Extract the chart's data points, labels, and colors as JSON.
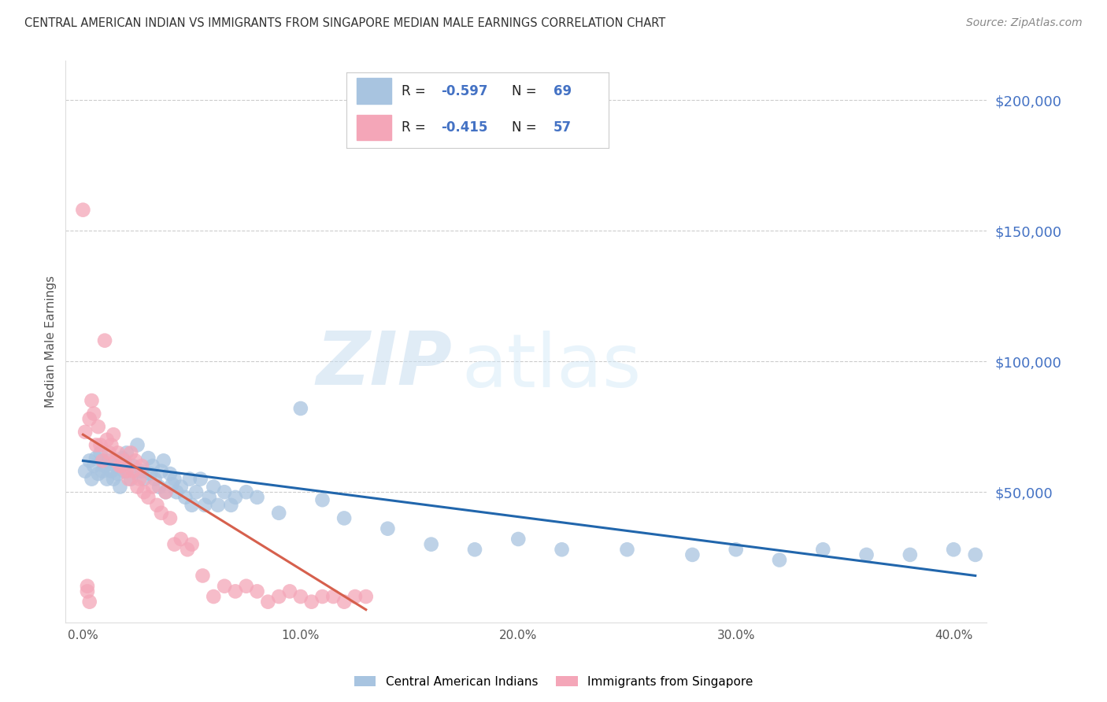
{
  "title": "CENTRAL AMERICAN INDIAN VS IMMIGRANTS FROM SINGAPORE MEDIAN MALE EARNINGS CORRELATION CHART",
  "source": "Source: ZipAtlas.com",
  "xlabel_ticks": [
    "0.0%",
    "10.0%",
    "20.0%",
    "30.0%",
    "40.0%"
  ],
  "xlabel_tick_vals": [
    0.0,
    0.1,
    0.2,
    0.3,
    0.4
  ],
  "ylabel": "Median Male Earnings",
  "ytick_labels": [
    "$200,000",
    "$150,000",
    "$100,000",
    "$50,000"
  ],
  "ytick_vals": [
    200000,
    150000,
    100000,
    50000
  ],
  "xlim": [
    -0.008,
    0.415
  ],
  "ylim": [
    0,
    215000
  ],
  "blue_color": "#a8c4e0",
  "blue_line_color": "#2166ac",
  "pink_color": "#f4a6b8",
  "pink_line_color": "#d6604d",
  "legend_label_blue": "Central American Indians",
  "legend_label_pink": "Immigrants from Singapore",
  "watermark_zip": "ZIP",
  "watermark_atlas": "atlas",
  "blue_scatter_x": [
    0.001,
    0.003,
    0.004,
    0.005,
    0.006,
    0.007,
    0.008,
    0.009,
    0.01,
    0.011,
    0.012,
    0.013,
    0.014,
    0.015,
    0.016,
    0.017,
    0.018,
    0.019,
    0.02,
    0.022,
    0.023,
    0.025,
    0.027,
    0.028,
    0.03,
    0.031,
    0.032,
    0.033,
    0.035,
    0.036,
    0.037,
    0.038,
    0.04,
    0.041,
    0.042,
    0.043,
    0.045,
    0.047,
    0.049,
    0.05,
    0.052,
    0.054,
    0.056,
    0.058,
    0.06,
    0.062,
    0.065,
    0.068,
    0.07,
    0.075,
    0.08,
    0.09,
    0.1,
    0.11,
    0.12,
    0.14,
    0.16,
    0.18,
    0.2,
    0.22,
    0.25,
    0.28,
    0.3,
    0.32,
    0.34,
    0.36,
    0.38,
    0.4,
    0.41
  ],
  "blue_scatter_y": [
    58000,
    62000,
    55000,
    60000,
    63000,
    57000,
    65000,
    58000,
    60000,
    55000,
    62000,
    58000,
    55000,
    60000,
    57000,
    52000,
    63000,
    58000,
    65000,
    55000,
    60000,
    68000,
    58000,
    55000,
    63000,
    57000,
    60000,
    55000,
    52000,
    58000,
    62000,
    50000,
    57000,
    53000,
    55000,
    50000,
    52000,
    48000,
    55000,
    45000,
    50000,
    55000,
    45000,
    48000,
    52000,
    45000,
    50000,
    45000,
    48000,
    50000,
    48000,
    42000,
    82000,
    47000,
    40000,
    36000,
    30000,
    28000,
    32000,
    28000,
    28000,
    26000,
    28000,
    24000,
    28000,
    26000,
    26000,
    28000,
    26000
  ],
  "pink_scatter_x": [
    0.0,
    0.001,
    0.002,
    0.003,
    0.004,
    0.005,
    0.006,
    0.007,
    0.008,
    0.009,
    0.01,
    0.011,
    0.012,
    0.013,
    0.014,
    0.015,
    0.016,
    0.017,
    0.018,
    0.019,
    0.02,
    0.021,
    0.022,
    0.023,
    0.024,
    0.025,
    0.026,
    0.027,
    0.028,
    0.03,
    0.032,
    0.034,
    0.036,
    0.038,
    0.04,
    0.042,
    0.045,
    0.048,
    0.05,
    0.055,
    0.06,
    0.065,
    0.07,
    0.075,
    0.08,
    0.085,
    0.09,
    0.095,
    0.1,
    0.105,
    0.11,
    0.115,
    0.12,
    0.125,
    0.13,
    0.002,
    0.003
  ],
  "pink_scatter_y": [
    158000,
    73000,
    14000,
    78000,
    85000,
    80000,
    68000,
    75000,
    68000,
    62000,
    108000,
    70000,
    65000,
    68000,
    72000,
    62000,
    65000,
    60000,
    60000,
    62000,
    58000,
    55000,
    65000,
    58000,
    62000,
    52000,
    55000,
    60000,
    50000,
    48000,
    52000,
    45000,
    42000,
    50000,
    40000,
    30000,
    32000,
    28000,
    30000,
    18000,
    10000,
    14000,
    12000,
    14000,
    12000,
    8000,
    10000,
    12000,
    10000,
    8000,
    10000,
    10000,
    8000,
    10000,
    10000,
    12000,
    8000
  ],
  "blue_line_x0": 0.0,
  "blue_line_x1": 0.41,
  "blue_line_y0": 62000,
  "blue_line_y1": 18000,
  "pink_line_x0": 0.0,
  "pink_line_x1": 0.13,
  "pink_line_y0": 72000,
  "pink_line_y1": 5000
}
